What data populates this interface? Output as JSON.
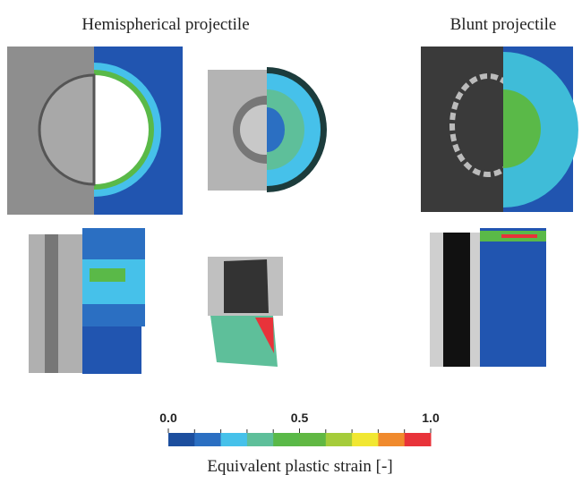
{
  "figure": {
    "panel_titles": [
      "Hemispherical projectile",
      "Blunt projectile"
    ],
    "colorbar": {
      "lim": [
        0,
        1
      ],
      "ticks": [
        {
          "value": 0,
          "label": "0.0"
        },
        0.5,
        {
          "value": 1,
          "label": "1.0"
        }
      ],
      "colors": [
        "#1c4e9e",
        "#2b6fc2",
        "#46c1ea",
        "#5ebf9a",
        "#5ab948",
        "#61b843",
        "#a5cc3a",
        "#f1e732",
        "#f08a2d",
        "#e8333a"
      ],
      "label": "Equivalent plastic strain [-]"
    }
  }
}
